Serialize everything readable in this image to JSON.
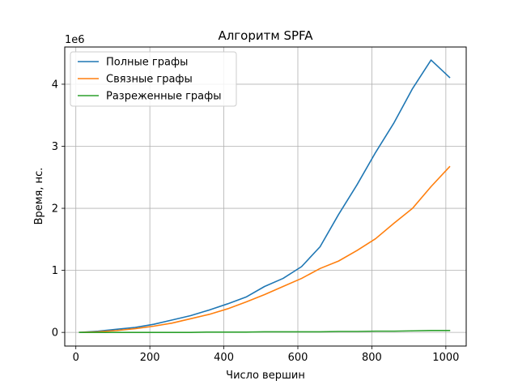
{
  "chart_data": {
    "type": "line",
    "title": "Алгоритм SPFA",
    "xlabel": "Число вершин",
    "ylabel": "Время, нс.",
    "y_scale_label": "1e6",
    "xlim": [
      -30,
      1055
    ],
    "ylim": [
      -0.22,
      4.6
    ],
    "x_ticks": [
      0,
      200,
      400,
      600,
      800,
      1000
    ],
    "x_tick_labels": [
      "0",
      "200",
      "400",
      "600",
      "800",
      "1000"
    ],
    "y_ticks": [
      0,
      1,
      2,
      3,
      4
    ],
    "y_tick_labels": [
      "0",
      "1",
      "2",
      "3",
      "4"
    ],
    "grid": true,
    "legend_position": "top-left",
    "x": [
      10,
      60,
      110,
      160,
      210,
      260,
      310,
      360,
      410,
      460,
      510,
      560,
      610,
      660,
      710,
      760,
      810,
      860,
      910,
      960,
      1010
    ],
    "series": [
      {
        "name": "Полные графы",
        "color": "#1f77b4",
        "values": [
          0.0,
          0.02,
          0.05,
          0.08,
          0.13,
          0.2,
          0.27,
          0.36,
          0.46,
          0.57,
          0.74,
          0.87,
          1.06,
          1.38,
          1.9,
          2.38,
          2.9,
          3.38,
          3.93,
          4.39,
          4.11
        ]
      },
      {
        "name": "Связные графы",
        "color": "#ff7f0e",
        "values": [
          0.0,
          0.01,
          0.03,
          0.06,
          0.1,
          0.15,
          0.22,
          0.29,
          0.38,
          0.49,
          0.61,
          0.74,
          0.87,
          1.03,
          1.15,
          1.32,
          1.51,
          1.76,
          2.0,
          2.35,
          2.67
        ]
      },
      {
        "name": "Разреженные графы",
        "color": "#2ca02c",
        "values": [
          0.0,
          0.0,
          0.0,
          0.0,
          0.0,
          0.0,
          0.0,
          0.005,
          0.005,
          0.005,
          0.01,
          0.01,
          0.01,
          0.01,
          0.015,
          0.015,
          0.02,
          0.02,
          0.025,
          0.03,
          0.03
        ]
      }
    ]
  }
}
